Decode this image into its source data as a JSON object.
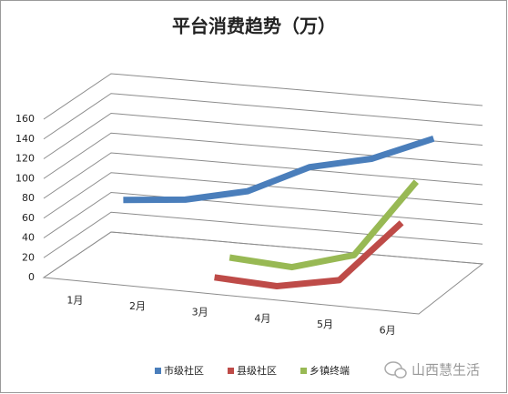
{
  "chart_data": {
    "type": "line3d",
    "title": "平台消费趋势（万）",
    "categories": [
      "1月",
      "2月",
      "3月",
      "4月",
      "5月",
      "6月"
    ],
    "series": [
      {
        "name": "市级社区",
        "color": "#4a7ebb",
        "values": [
          48,
          54,
          68,
          98,
          112,
          138
        ]
      },
      {
        "name": "县级社区",
        "color": "#be4b48",
        "values": [
          null,
          null,
          5,
          2,
          14,
          78
        ]
      },
      {
        "name": "乡镇终端",
        "color": "#98b954",
        "values": [
          null,
          null,
          14,
          10,
          28,
          108
        ]
      }
    ],
    "ylim": [
      0,
      160
    ],
    "yticks": [
      0,
      20,
      40,
      60,
      80,
      100,
      120,
      140,
      160
    ],
    "grid": true,
    "legend": "bottom",
    "watermark": "山西慧生活"
  }
}
